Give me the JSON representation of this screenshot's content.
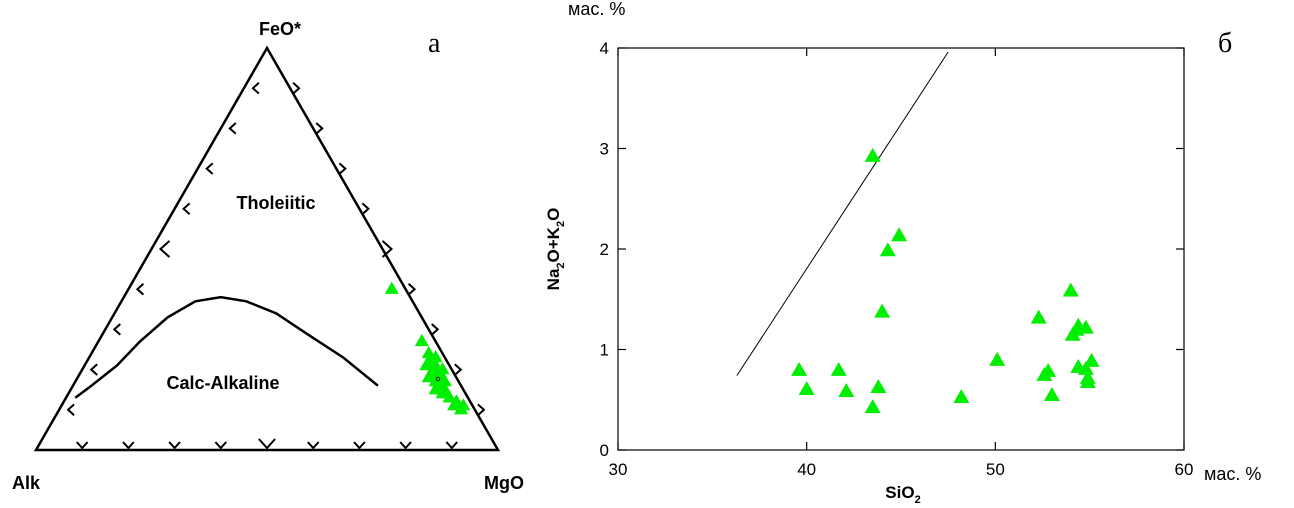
{
  "chart_data": [
    {
      "type": "scatter",
      "subtype": "ternary",
      "panel_label": "а",
      "vertices": {
        "top": "FeO*",
        "left": "Alk",
        "right": "MgO"
      },
      "region_labels": [
        "Tholeiitic",
        "Calc-Alkaline"
      ],
      "boundary_curve": [
        [
          0.85,
          0.13
        ],
        [
          0.8,
          0.16
        ],
        [
          0.72,
          0.21
        ],
        [
          0.64,
          0.27
        ],
        [
          0.55,
          0.33
        ],
        [
          0.47,
          0.37
        ],
        [
          0.41,
          0.38
        ],
        [
          0.36,
          0.37
        ],
        [
          0.31,
          0.34
        ],
        [
          0.27,
          0.29
        ],
        [
          0.22,
          0.23
        ],
        [
          0.18,
          0.16
        ]
      ],
      "marker_color": "#00ee00",
      "points": [
        [
          0.03,
          0.4,
          0.57
        ],
        [
          0.03,
          0.27,
          0.7
        ],
        [
          0.03,
          0.24,
          0.73
        ],
        [
          0.02,
          0.23,
          0.75
        ],
        [
          0.04,
          0.22,
          0.74
        ],
        [
          0.03,
          0.21,
          0.76
        ],
        [
          0.05,
          0.21,
          0.74
        ],
        [
          0.04,
          0.2,
          0.76
        ],
        [
          0.02,
          0.2,
          0.78
        ],
        [
          0.05,
          0.19,
          0.76
        ],
        [
          0.03,
          0.19,
          0.78
        ],
        [
          0.06,
          0.18,
          0.76
        ],
        [
          0.04,
          0.18,
          0.78
        ],
        [
          0.05,
          0.17,
          0.78
        ],
        [
          0.03,
          0.17,
          0.8
        ],
        [
          0.05,
          0.16,
          0.79
        ],
        [
          0.04,
          0.15,
          0.81
        ],
        [
          0.06,
          0.15,
          0.79
        ],
        [
          0.05,
          0.14,
          0.81
        ],
        [
          0.04,
          0.13,
          0.83
        ],
        [
          0.03,
          0.12,
          0.85
        ],
        [
          0.04,
          0.11,
          0.85
        ],
        [
          0.02,
          0.11,
          0.87
        ],
        [
          0.03,
          0.1,
          0.87
        ]
      ]
    },
    {
      "type": "scatter",
      "panel_label": "б",
      "xlabel": "SiO",
      "xlabel_sub": "2",
      "ylabel_parts": [
        "Na",
        "2",
        "O+K",
        "2",
        "O"
      ],
      "x_unit": "мас. %",
      "y_unit": "мас. %",
      "xlim": [
        30,
        60
      ],
      "ylim": [
        0,
        4
      ],
      "x_ticks": [
        "30",
        "40",
        "50",
        "60"
      ],
      "y_ticks": [
        "0",
        "1",
        "2",
        "3",
        "4"
      ],
      "boundary_line": [
        [
          36.3,
          0.74
        ],
        [
          47.5,
          3.96
        ]
      ],
      "marker_color": "#00ee00",
      "points": [
        [
          43.5,
          2.92
        ],
        [
          44.9,
          2.13
        ],
        [
          44.3,
          1.98
        ],
        [
          44.0,
          1.37
        ],
        [
          39.6,
          0.79
        ],
        [
          40.0,
          0.6
        ],
        [
          41.7,
          0.79
        ],
        [
          42.1,
          0.58
        ],
        [
          43.8,
          0.62
        ],
        [
          43.5,
          0.42
        ],
        [
          48.2,
          0.52
        ],
        [
          50.1,
          0.89
        ],
        [
          52.3,
          1.31
        ],
        [
          52.6,
          0.74
        ],
        [
          52.8,
          0.78
        ],
        [
          53.0,
          0.54
        ],
        [
          54.0,
          1.58
        ],
        [
          54.1,
          1.14
        ],
        [
          54.3,
          1.19
        ],
        [
          54.4,
          1.23
        ],
        [
          54.8,
          1.21
        ],
        [
          54.4,
          0.82
        ],
        [
          54.8,
          0.8
        ],
        [
          54.9,
          0.71
        ],
        [
          54.9,
          0.67
        ],
        [
          55.1,
          0.88
        ]
      ]
    }
  ]
}
